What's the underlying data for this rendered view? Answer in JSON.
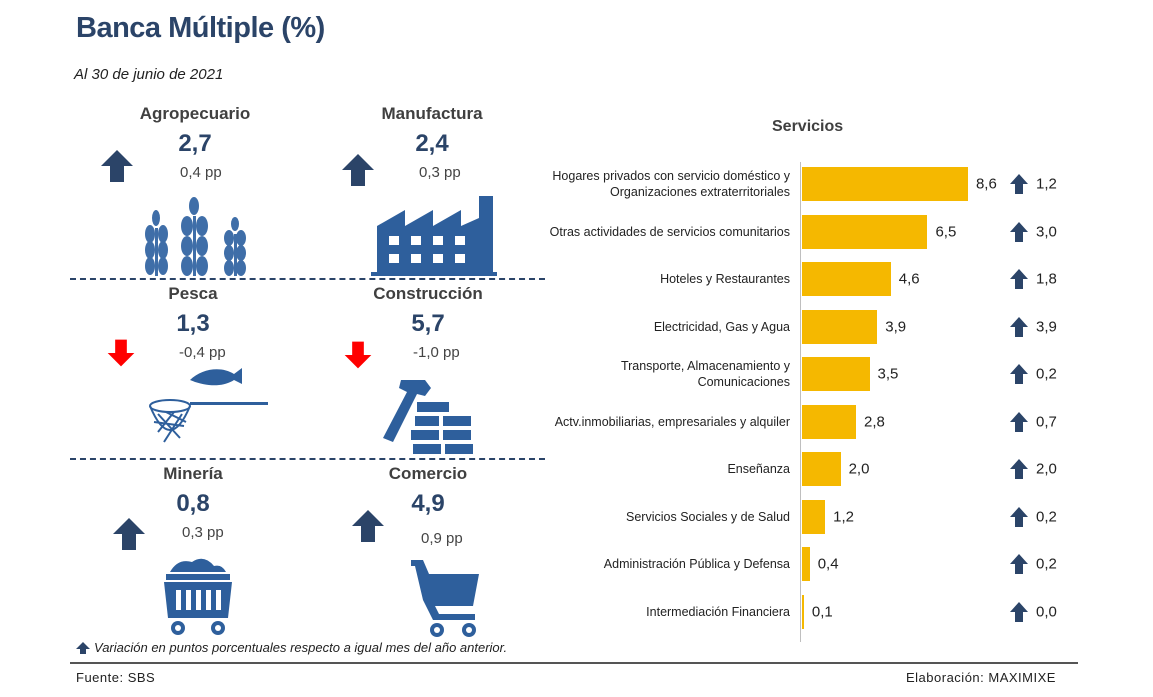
{
  "title": "Banca Múltiple (%)",
  "subtitle": "Al 30 de junio de 2021",
  "colors": {
    "up": "#2b4468",
    "down": "#ff0000",
    "bar": "#f5b800",
    "title": "#2b4468"
  },
  "sectors": [
    {
      "name": "Agropecuario",
      "value": "2,7",
      "change": "0,4 pp",
      "direction": "up",
      "icon": "wheat-icon"
    },
    {
      "name": "Manufactura",
      "value": "2,4",
      "change": "0,3 pp",
      "direction": "up",
      "icon": "factory-icon"
    },
    {
      "name": "Pesca",
      "value": "1,3",
      "change": "-0,4 pp",
      "direction": "down",
      "icon": "fish-net-icon"
    },
    {
      "name": "Construcción",
      "value": "5,7",
      "change": "-1,0 pp",
      "direction": "down",
      "icon": "hammer-bricks-icon"
    },
    {
      "name": "Minería",
      "value": "0,8",
      "change": "0,3 pp",
      "direction": "up",
      "icon": "mining-cart-icon"
    },
    {
      "name": "Comercio",
      "value": "4,9",
      "change": "0,9 pp",
      "direction": "up",
      "icon": "shopping-cart-icon"
    }
  ],
  "chart_data": {
    "type": "bar",
    "orientation": "horizontal",
    "title": "Servicios",
    "categories": [
      [
        "Hogares privados con servicio doméstico y",
        "Organizaciones extraterritoriales"
      ],
      [
        "Otras actividades de servicios comunitarios"
      ],
      [
        "Hoteles y Restaurantes"
      ],
      [
        "Electricidad, Gas y Agua"
      ],
      [
        "Transporte, Almacenamiento y",
        "Comunicaciones"
      ],
      [
        "Actv.inmobiliarias, empresariales y alquiler"
      ],
      [
        "Enseñanza"
      ],
      [
        "Servicios Sociales y de Salud"
      ],
      [
        "Administración Pública y Defensa"
      ],
      [
        "Intermediación Financiera"
      ]
    ],
    "values": [
      8.6,
      6.5,
      4.6,
      3.9,
      3.5,
      2.8,
      2.0,
      1.2,
      0.4,
      0.1
    ],
    "value_labels": [
      "8,6",
      "6,5",
      "4,6",
      "3,9",
      "3,5",
      "2,8",
      "2,0",
      "1,2",
      "0,4",
      "0,1"
    ],
    "variation": [
      1.2,
      3.0,
      1.8,
      3.9,
      0.2,
      0.7,
      2.0,
      0.2,
      0.2,
      0.0
    ],
    "variation_labels": [
      "1,2",
      "3,0",
      "1,8",
      "3,9",
      "0,2",
      "0,7",
      "2,0",
      "0,2",
      "0,2",
      "0,0"
    ],
    "variation_direction": [
      "up",
      "up",
      "up",
      "up",
      "up",
      "up",
      "up",
      "up",
      "up",
      "up"
    ],
    "xlim": [
      0,
      10
    ],
    "grid": false
  },
  "footnote": "Variación en puntos porcentuales respecto a igual mes del año anterior.",
  "source": "Fuente: SBS",
  "credit": "Elaboración: MAXIMIXE"
}
